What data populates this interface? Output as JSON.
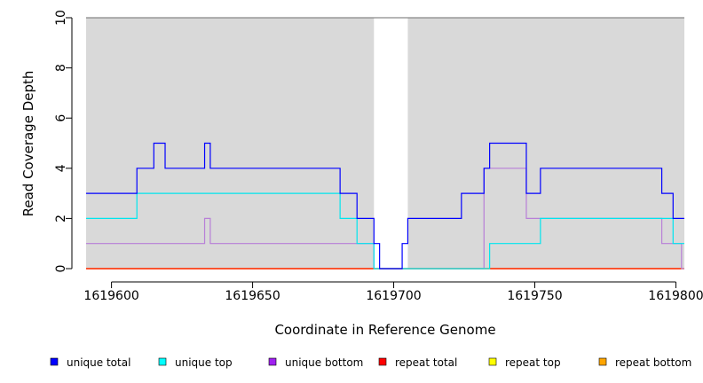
{
  "chart_data": {
    "type": "line",
    "title": "",
    "xlabel": "Coordinate in Reference Genome",
    "ylabel": "Read Coverage Depth",
    "xlim": [
      1619591,
      1619803
    ],
    "ylim": [
      0,
      10
    ],
    "x_ticks": [
      1619600,
      1619650,
      1619700,
      1619750,
      1619800
    ],
    "y_ticks": [
      0,
      2,
      4,
      6,
      8,
      10
    ],
    "grid": false,
    "legend_position": "bottom",
    "shaded_regions": [
      [
        1619591,
        1619693
      ],
      [
        1619705,
        1619803
      ]
    ],
    "series": [
      {
        "name": "unique total",
        "color": "#0000ff",
        "steps": [
          [
            1619591,
            3
          ],
          [
            1619609,
            4
          ],
          [
            1619615,
            5
          ],
          [
            1619619,
            4
          ],
          [
            1619633,
            5
          ],
          [
            1619635,
            4
          ],
          [
            1619681,
            3
          ],
          [
            1619687,
            2
          ],
          [
            1619693,
            1
          ],
          [
            1619695,
            0
          ],
          [
            1619703,
            1
          ],
          [
            1619705,
            2
          ],
          [
            1619724,
            3
          ],
          [
            1619732,
            4
          ],
          [
            1619734,
            5
          ],
          [
            1619747,
            3
          ],
          [
            1619752,
            4
          ],
          [
            1619795,
            3
          ],
          [
            1619799,
            2
          ],
          [
            1619803,
            2
          ]
        ]
      },
      {
        "name": "unique top",
        "color": "#00e5ee",
        "steps": [
          [
            1619591,
            2
          ],
          [
            1619609,
            3
          ],
          [
            1619619,
            3
          ],
          [
            1619681,
            2
          ],
          [
            1619687,
            1
          ],
          [
            1619693,
            0
          ],
          [
            1619705,
            0
          ],
          [
            1619734,
            1
          ],
          [
            1619752,
            2
          ],
          [
            1619799,
            1
          ],
          [
            1619803,
            1
          ]
        ]
      },
      {
        "name": "unique bottom",
        "color": "#b87fd8",
        "steps": [
          [
            1619591,
            1
          ],
          [
            1619633,
            2
          ],
          [
            1619635,
            1
          ],
          [
            1619693,
            0
          ],
          [
            1619705,
            0
          ],
          [
            1619732,
            4
          ],
          [
            1619747,
            2
          ],
          [
            1619795,
            1
          ],
          [
            1619802,
            0
          ],
          [
            1619803,
            0
          ]
        ]
      },
      {
        "name": "repeat total",
        "color": "#ff0000",
        "steps": [
          [
            1619591,
            0
          ],
          [
            1619803,
            0
          ]
        ]
      },
      {
        "name": "repeat top",
        "color": "#ffff00",
        "steps": [
          [
            1619591,
            0
          ],
          [
            1619803,
            0
          ]
        ]
      },
      {
        "name": "repeat bottom",
        "color": "#ffa500",
        "steps": [
          [
            1619591,
            0
          ],
          [
            1619803,
            0
          ]
        ]
      }
    ],
    "legend": [
      {
        "label": "unique total",
        "color": "#0000ff"
      },
      {
        "label": "unique top",
        "color": "#00ffff"
      },
      {
        "label": "unique bottom",
        "color": "#a020f0"
      },
      {
        "label": "repeat total",
        "color": "#ff0000"
      },
      {
        "label": "repeat top",
        "color": "#ffff00"
      },
      {
        "label": "repeat bottom",
        "color": "#ffa500"
      }
    ]
  }
}
